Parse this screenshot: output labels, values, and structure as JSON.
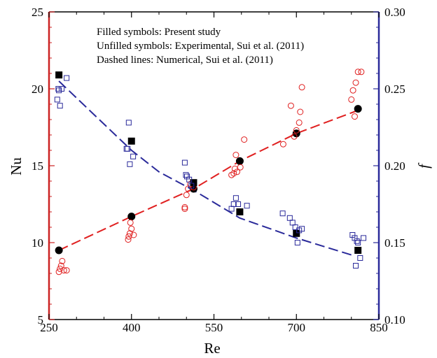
{
  "chart_data": {
    "type": "scatter",
    "notes": [
      "Filled symbols: Present study",
      "Unfilled symbols: Experimental, Sui et al. (2011)",
      "Dashed lines: Numerical, Sui et al. (2011)"
    ],
    "xlabel": "Re",
    "ylabel_left": "Nu",
    "ylabel_right": "f",
    "xlim": [
      250,
      850
    ],
    "ylim_left": [
      5,
      25
    ],
    "ylim_right": [
      0.1,
      0.3
    ],
    "xticks": [
      250,
      400,
      550,
      700,
      850
    ],
    "xtick_labels": [
      "250",
      "400",
      "550",
      "700",
      "850"
    ],
    "yticks_left": [
      5,
      10,
      15,
      20,
      25
    ],
    "ytick_labels_left": [
      "5",
      "10",
      "15",
      "20",
      "25"
    ],
    "yticks_right": [
      0.1,
      0.15,
      0.2,
      0.25,
      0.3
    ],
    "ytick_labels_right": [
      "0.10",
      "0.15",
      "0.20",
      "0.25",
      "0.30"
    ],
    "colors": {
      "nu": "#e02020",
      "f": "#2a2a9a",
      "left_axis": "#cc2222",
      "right_axis": "#2a2a9a"
    },
    "series": [
      {
        "axis": "left",
        "marker": "circle-filled",
        "color": "#000000",
        "points": [
          [
            268,
            9.5
          ],
          [
            400,
            11.7
          ],
          [
            513,
            13.5
          ],
          [
            597,
            15.3
          ],
          [
            700,
            17.1
          ],
          [
            812,
            18.7
          ]
        ]
      },
      {
        "axis": "left",
        "marker": "circle-open",
        "color": "#e02020",
        "points": [
          [
            268,
            8.1
          ],
          [
            270,
            8.3
          ],
          [
            272,
            8.5
          ],
          [
            274,
            8.8
          ],
          [
            277,
            8.2
          ],
          [
            282,
            8.2
          ],
          [
            394,
            10.2
          ],
          [
            395,
            10.4
          ],
          [
            397,
            10.6
          ],
          [
            398,
            11.3
          ],
          [
            400,
            10.9
          ],
          [
            404,
            10.5
          ],
          [
            497,
            12.2
          ],
          [
            497,
            12.3
          ],
          [
            500,
            13.1
          ],
          [
            503,
            13.5
          ],
          [
            507,
            13.8
          ],
          [
            513,
            13.6
          ],
          [
            582,
            14.4
          ],
          [
            586,
            14.5
          ],
          [
            588,
            14.8
          ],
          [
            590,
            15.7
          ],
          [
            592,
            14.6
          ],
          [
            598,
            14.9
          ],
          [
            605,
            16.7
          ],
          [
            676,
            16.4
          ],
          [
            690,
            18.9
          ],
          [
            696,
            16.9
          ],
          [
            700,
            17.3
          ],
          [
            705,
            17.8
          ],
          [
            707,
            18.5
          ],
          [
            710,
            20.1
          ],
          [
            800,
            19.3
          ],
          [
            803,
            19.9
          ],
          [
            806,
            18.2
          ],
          [
            808,
            20.4
          ],
          [
            812,
            21.1
          ],
          [
            818,
            21.1
          ]
        ]
      },
      {
        "axis": "left",
        "marker": "line-dashed",
        "color": "#e02020",
        "points": [
          [
            268,
            9.5
          ],
          [
            400,
            11.7
          ],
          [
            513,
            13.5
          ],
          [
            597,
            15.3
          ],
          [
            700,
            17.1
          ],
          [
            812,
            18.6
          ]
        ]
      },
      {
        "axis": "right",
        "marker": "square-filled",
        "color": "#000000",
        "points": [
          [
            268,
            0.259
          ],
          [
            400,
            0.216
          ],
          [
            513,
            0.189
          ],
          [
            597,
            0.17
          ],
          [
            700,
            0.156
          ],
          [
            812,
            0.145
          ]
        ]
      },
      {
        "axis": "right",
        "marker": "square-open",
        "color": "#2a2a9a",
        "points": [
          [
            265,
            0.243
          ],
          [
            267,
            0.25
          ],
          [
            268,
            0.249
          ],
          [
            270,
            0.239
          ],
          [
            273,
            0.25
          ],
          [
            282,
            0.257
          ],
          [
            391,
            0.211
          ],
          [
            393,
            0.211
          ],
          [
            395,
            0.228
          ],
          [
            397,
            0.201
          ],
          [
            403,
            0.206
          ],
          [
            497,
            0.202
          ],
          [
            499,
            0.194
          ],
          [
            501,
            0.193
          ],
          [
            505,
            0.191
          ],
          [
            509,
            0.187
          ],
          [
            582,
            0.172
          ],
          [
            586,
            0.175
          ],
          [
            590,
            0.179
          ],
          [
            594,
            0.175
          ],
          [
            610,
            0.174
          ],
          [
            675,
            0.169
          ],
          [
            688,
            0.166
          ],
          [
            693,
            0.163
          ],
          [
            698,
            0.16
          ],
          [
            705,
            0.158
          ],
          [
            710,
            0.159
          ],
          [
            702,
            0.15
          ],
          [
            802,
            0.155
          ],
          [
            806,
            0.153
          ],
          [
            810,
            0.151
          ],
          [
            812,
            0.15
          ],
          [
            816,
            0.14
          ],
          [
            822,
            0.153
          ],
          [
            808,
            0.135
          ]
        ]
      },
      {
        "axis": "right",
        "marker": "line-dashed",
        "color": "#2a2a9a",
        "points": [
          [
            268,
            0.255
          ],
          [
            400,
            0.21
          ],
          [
            450,
            0.196
          ],
          [
            513,
            0.184
          ],
          [
            597,
            0.166
          ],
          [
            700,
            0.153
          ],
          [
            800,
            0.142
          ]
        ]
      }
    ]
  }
}
